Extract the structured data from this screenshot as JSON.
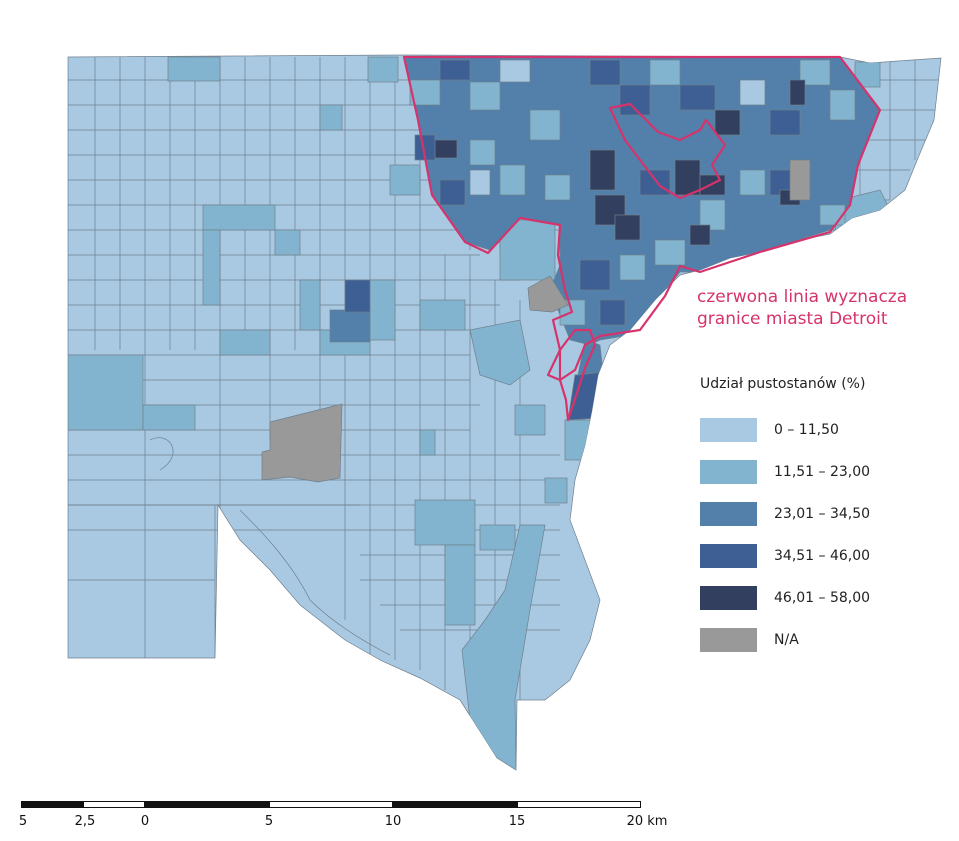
{
  "annotation": {
    "line1": "czerwona linia wyznacza",
    "line2": "granice miasta Detroit"
  },
  "legend": {
    "title": "Udział pustostanów (%)",
    "classes": [
      {
        "label": "0 – 11,50",
        "color": "#a9c9e3"
      },
      {
        "label": "11,51 – 23,00",
        "color": "#82b4cf"
      },
      {
        "label": "23,01 – 34,50",
        "color": "#5280aa"
      },
      {
        "label": "34,51 – 46,00",
        "color": "#3e5f93"
      },
      {
        "label": "46,01 – 58,00",
        "color": "#333f5e"
      },
      {
        "label": "N/A",
        "color": "#999999"
      }
    ]
  },
  "scale": {
    "labels": [
      "5",
      "2,5",
      "0",
      "5",
      "10",
      "15",
      "20 km"
    ]
  },
  "colors": {
    "city_border": "#d6336c",
    "tract_outline": "#6f7f8c"
  }
}
